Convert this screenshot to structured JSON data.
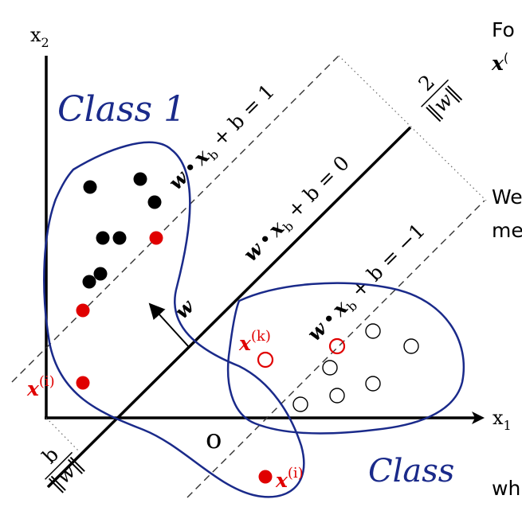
{
  "axes": {
    "x_label": "x",
    "x_sub": "1",
    "y_label": "x",
    "y_sub": "2"
  },
  "hyperplanes": {
    "upper": {
      "lhs": "w",
      "dot": "•",
      "var": "x",
      "sub": "b",
      "rhs": " + b = 1"
    },
    "middle": {
      "lhs": "w",
      "dot": "•",
      "var": "x",
      "sub": "b",
      "rhs": " + b = 0"
    },
    "lower": {
      "lhs": "w",
      "dot": "•",
      "var": "x",
      "sub": "b",
      "rhs": " + b = −1"
    }
  },
  "normal_vector": {
    "label": "w"
  },
  "margin": {
    "num": "2",
    "den": "‖w‖"
  },
  "offset": {
    "num": "b",
    "den": "‖w‖"
  },
  "class_labels": {
    "class1": "Class 1",
    "class2": "Class"
  },
  "handwritten_zero": "o",
  "points": {
    "xi_left": {
      "base": "x",
      "sup": "(i)"
    },
    "xi_bottom": {
      "base": "x",
      "sup": "(i)"
    },
    "xk": {
      "base": "x",
      "sup": "(k)"
    }
  },
  "cutoff_text": {
    "top1": "Fo",
    "top2": "x",
    "top2_sup": "(",
    "mid1": "We",
    "mid2": "me",
    "bottom": "wh"
  },
  "colors": {
    "black": "#000000",
    "red": "#e00000",
    "blue": "#1a2a8a",
    "dash": "#333333"
  }
}
